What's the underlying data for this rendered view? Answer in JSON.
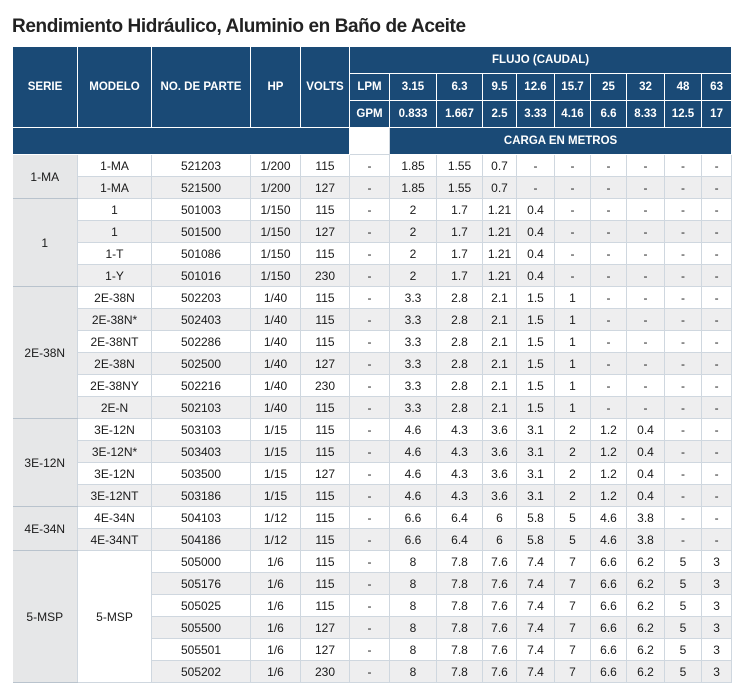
{
  "title": "Rendimiento Hidráulico, Aluminio en Baño de Aceite",
  "headers": {
    "serie": "SERIE",
    "modelo": "MODELO",
    "no_parte": "NO. DE PARTE",
    "hp": "HP",
    "volts": "VOLTS",
    "flujo": "FLUJO (CAUDAL)",
    "lpm": "LPM",
    "gpm": "GPM",
    "carga": "CARGA EN METROS",
    "lpm_values": [
      "3.15",
      "6.3",
      "9.5",
      "12.6",
      "15.7",
      "25",
      "32",
      "48",
      "63"
    ],
    "gpm_values": [
      "0.833",
      "1.667",
      "2.5",
      "3.33",
      "4.16",
      "6.6",
      "8.33",
      "12.5",
      "17"
    ]
  },
  "groups": [
    {
      "serie": "1-MA",
      "rows": [
        {
          "modelo": "1-MA",
          "parte": "521203",
          "hp": "1/200",
          "volts": "115",
          "lpm": "-",
          "vals": [
            "1.85",
            "1.55",
            "0.7",
            "-",
            "-",
            "-",
            "-",
            "-",
            "-"
          ]
        },
        {
          "modelo": "1-MA",
          "parte": "521500",
          "hp": "1/200",
          "volts": "127",
          "lpm": "-",
          "vals": [
            "1.85",
            "1.55",
            "0.7",
            "-",
            "-",
            "-",
            "-",
            "-",
            "-"
          ]
        }
      ]
    },
    {
      "serie": "1",
      "rows": [
        {
          "modelo": "1",
          "parte": "501003",
          "hp": "1/150",
          "volts": "115",
          "lpm": "-",
          "vals": [
            "2",
            "1.7",
            "1.21",
            "0.4",
            "-",
            "-",
            "-",
            "-",
            "-"
          ]
        },
        {
          "modelo": "1",
          "parte": "501500",
          "hp": "1/150",
          "volts": "127",
          "lpm": "-",
          "vals": [
            "2",
            "1.7",
            "1.21",
            "0.4",
            "-",
            "-",
            "-",
            "-",
            "-"
          ]
        },
        {
          "modelo": "1-T",
          "parte": "501086",
          "hp": "1/150",
          "volts": "115",
          "lpm": "-",
          "vals": [
            "2",
            "1.7",
            "1.21",
            "0.4",
            "-",
            "-",
            "-",
            "-",
            "-"
          ]
        },
        {
          "modelo": "1-Y",
          "parte": "501016",
          "hp": "1/150",
          "volts": "230",
          "lpm": "-",
          "vals": [
            "2",
            "1.7",
            "1.21",
            "0.4",
            "-",
            "-",
            "-",
            "-",
            "-"
          ]
        }
      ]
    },
    {
      "serie": "2E-38N",
      "rows": [
        {
          "modelo": "2E-38N",
          "parte": "502203",
          "hp": "1/40",
          "volts": "115",
          "lpm": "-",
          "vals": [
            "3.3",
            "2.8",
            "2.1",
            "1.5",
            "1",
            "-",
            "-",
            "-",
            "-"
          ]
        },
        {
          "modelo": "2E-38N*",
          "parte": "502403",
          "hp": "1/40",
          "volts": "115",
          "lpm": "-",
          "vals": [
            "3.3",
            "2.8",
            "2.1",
            "1.5",
            "1",
            "-",
            "-",
            "-",
            "-"
          ]
        },
        {
          "modelo": "2E-38NT",
          "parte": "502286",
          "hp": "1/40",
          "volts": "115",
          "lpm": "-",
          "vals": [
            "3.3",
            "2.8",
            "2.1",
            "1.5",
            "1",
            "-",
            "-",
            "-",
            "-"
          ]
        },
        {
          "modelo": "2E-38N",
          "parte": "502500",
          "hp": "1/40",
          "volts": "127",
          "lpm": "-",
          "vals": [
            "3.3",
            "2.8",
            "2.1",
            "1.5",
            "1",
            "-",
            "-",
            "-",
            "-"
          ]
        },
        {
          "modelo": "2E-38NY",
          "parte": "502216",
          "hp": "1/40",
          "volts": "230",
          "lpm": "-",
          "vals": [
            "3.3",
            "2.8",
            "2.1",
            "1.5",
            "1",
            "-",
            "-",
            "-",
            "-"
          ]
        },
        {
          "modelo": "2E-N",
          "parte": "502103",
          "hp": "1/40",
          "volts": "115",
          "lpm": "-",
          "vals": [
            "3.3",
            "2.8",
            "2.1",
            "1.5",
            "1",
            "-",
            "-",
            "-",
            "-"
          ]
        }
      ]
    },
    {
      "serie": "3E-12N",
      "rows": [
        {
          "modelo": "3E-12N",
          "parte": "503103",
          "hp": "1/15",
          "volts": "115",
          "lpm": "-",
          "vals": [
            "4.6",
            "4.3",
            "3.6",
            "3.1",
            "2",
            "1.2",
            "0.4",
            "-",
            "-"
          ]
        },
        {
          "modelo": "3E-12N*",
          "parte": "503403",
          "hp": "1/15",
          "volts": "115",
          "lpm": "-",
          "vals": [
            "4.6",
            "4.3",
            "3.6",
            "3.1",
            "2",
            "1.2",
            "0.4",
            "-",
            "-"
          ]
        },
        {
          "modelo": "3E-12N",
          "parte": "503500",
          "hp": "1/15",
          "volts": "127",
          "lpm": "-",
          "vals": [
            "4.6",
            "4.3",
            "3.6",
            "3.1",
            "2",
            "1.2",
            "0.4",
            "-",
            "-"
          ]
        },
        {
          "modelo": "3E-12NT",
          "parte": "503186",
          "hp": "1/15",
          "volts": "115",
          "lpm": "-",
          "vals": [
            "4.6",
            "4.3",
            "3.6",
            "3.1",
            "2",
            "1.2",
            "0.4",
            "-",
            "-"
          ]
        }
      ]
    },
    {
      "serie": "4E-34N",
      "rows": [
        {
          "modelo": "4E-34N",
          "parte": "504103",
          "hp": "1/12",
          "volts": "115",
          "lpm": "-",
          "vals": [
            "6.6",
            "6.4",
            "6",
            "5.8",
            "5",
            "4.6",
            "3.8",
            "-",
            "-"
          ]
        },
        {
          "modelo": "4E-34NT",
          "parte": "504186",
          "hp": "1/12",
          "volts": "115",
          "lpm": "-",
          "vals": [
            "6.6",
            "6.4",
            "6",
            "5.8",
            "5",
            "4.6",
            "3.8",
            "-",
            "-"
          ]
        }
      ]
    },
    {
      "serie": "5-MSP",
      "modelo": "5-MSP",
      "rows": [
        {
          "parte": "505000",
          "hp": "1/6",
          "volts": "115",
          "lpm": "-",
          "vals": [
            "8",
            "7.8",
            "7.6",
            "7.4",
            "7",
            "6.6",
            "6.2",
            "5",
            "3"
          ]
        },
        {
          "parte": "505176",
          "hp": "1/6",
          "volts": "115",
          "lpm": "-",
          "vals": [
            "8",
            "7.8",
            "7.6",
            "7.4",
            "7",
            "6.6",
            "6.2",
            "5",
            "3"
          ]
        },
        {
          "parte": "505025",
          "hp": "1/6",
          "volts": "115",
          "lpm": "-",
          "vals": [
            "8",
            "7.8",
            "7.6",
            "7.4",
            "7",
            "6.6",
            "6.2",
            "5",
            "3"
          ]
        },
        {
          "parte": "505500",
          "hp": "1/6",
          "volts": "127",
          "lpm": "-",
          "vals": [
            "8",
            "7.8",
            "7.6",
            "7.4",
            "7",
            "6.6",
            "6.2",
            "5",
            "3"
          ]
        },
        {
          "parte": "505501",
          "hp": "1/6",
          "volts": "127",
          "lpm": "-",
          "vals": [
            "8",
            "7.8",
            "7.6",
            "7.4",
            "7",
            "6.6",
            "6.2",
            "5",
            "3"
          ]
        },
        {
          "parte": "505202",
          "hp": "1/6",
          "volts": "230",
          "lpm": "-",
          "vals": [
            "8",
            "7.8",
            "7.6",
            "7.4",
            "7",
            "6.6",
            "6.2",
            "5",
            "3"
          ]
        }
      ]
    }
  ]
}
